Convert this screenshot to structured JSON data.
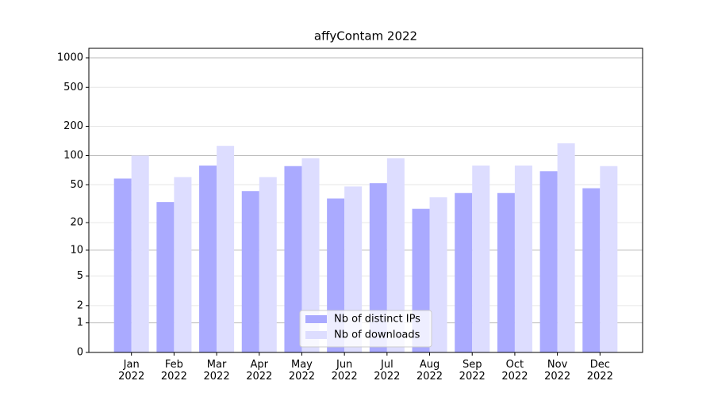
{
  "chart_data": {
    "type": "bar",
    "title": "affyContam 2022",
    "categories": [
      "Jan\n2022",
      "Feb\n2022",
      "Mar\n2022",
      "Apr\n2022",
      "May\n2022",
      "Jun\n2022",
      "Jul\n2022",
      "Aug\n2022",
      "Sep\n2022",
      "Oct\n2022",
      "Nov\n2022",
      "Dec\n2022"
    ],
    "series": [
      {
        "name": "Nb of distinct IPs",
        "color": "#aaaaff",
        "values": [
          58,
          33,
          79,
          43,
          78,
          36,
          52,
          28,
          41,
          41,
          69,
          46
        ]
      },
      {
        "name": "Nb of downloads",
        "color": "#ddddff",
        "values": [
          100,
          60,
          126,
          60,
          94,
          48,
          94,
          37,
          79,
          79,
          134,
          78
        ]
      }
    ],
    "yscale": "log1p",
    "ylim": [
      0,
      1250
    ],
    "yticks": [
      0,
      1,
      2,
      5,
      10,
      20,
      50,
      100,
      200,
      500,
      1000
    ],
    "grid": true,
    "legend": "lower center"
  }
}
